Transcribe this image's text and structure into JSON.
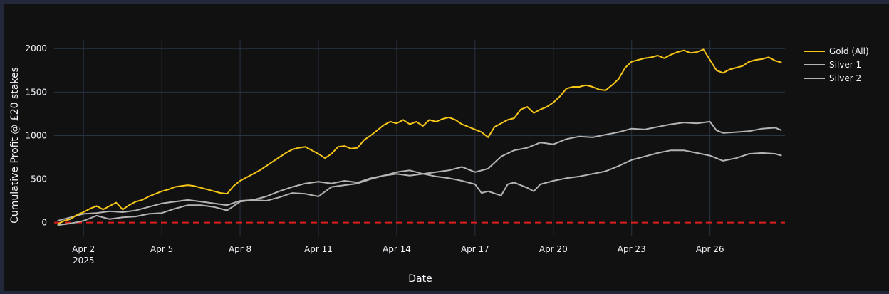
{
  "chart_data": {
    "type": "line",
    "title": "",
    "xlabel": "Date",
    "ylabel": "Cumulative Profit @ £20 stakes",
    "x_ticks": [
      {
        "date": "2025-04-02",
        "label": "Apr 2",
        "sublabel": "2025"
      },
      {
        "date": "2025-04-05",
        "label": "Apr 5",
        "sublabel": ""
      },
      {
        "date": "2025-04-08",
        "label": "Apr 8",
        "sublabel": ""
      },
      {
        "date": "2025-04-11",
        "label": "Apr 11",
        "sublabel": ""
      },
      {
        "date": "2025-04-14",
        "label": "Apr 14",
        "sublabel": ""
      },
      {
        "date": "2025-04-17",
        "label": "Apr 17",
        "sublabel": ""
      },
      {
        "date": "2025-04-20",
        "label": "Apr 20",
        "sublabel": ""
      },
      {
        "date": "2025-04-23",
        "label": "Apr 23",
        "sublabel": ""
      },
      {
        "date": "2025-04-26",
        "label": "Apr 26",
        "sublabel": ""
      }
    ],
    "xlim": [
      "2025-03-31T21:00",
      "2025-04-28T21:00"
    ],
    "ylim": [
      -150,
      2100
    ],
    "y_ticks": [
      0,
      500,
      1000,
      1500,
      2000
    ],
    "grid": true,
    "legend_position": "top-right",
    "reference_line": {
      "y": 0,
      "color": "#e01e1e",
      "style": "dashed"
    },
    "series": [
      {
        "name": "Gold (All)",
        "color": "#f5c518",
        "points": [
          [
            "2025-04-01T00:00",
            -20
          ],
          [
            "2025-04-01T06:00",
            20
          ],
          [
            "2025-04-01T12:00",
            40
          ],
          [
            "2025-04-01T18:00",
            90
          ],
          [
            "2025-04-02T00:00",
            120
          ],
          [
            "2025-04-02T06:00",
            160
          ],
          [
            "2025-04-02T12:00",
            190
          ],
          [
            "2025-04-02T18:00",
            150
          ],
          [
            "2025-04-03T00:00",
            190
          ],
          [
            "2025-04-03T06:00",
            230
          ],
          [
            "2025-04-03T12:00",
            150
          ],
          [
            "2025-04-03T18:00",
            200
          ],
          [
            "2025-04-04T00:00",
            240
          ],
          [
            "2025-04-04T06:00",
            260
          ],
          [
            "2025-04-04T12:00",
            300
          ],
          [
            "2025-04-04T18:00",
            330
          ],
          [
            "2025-04-05T00:00",
            360
          ],
          [
            "2025-04-05T06:00",
            380
          ],
          [
            "2025-04-05T12:00",
            410
          ],
          [
            "2025-04-05T18:00",
            420
          ],
          [
            "2025-04-06T00:00",
            430
          ],
          [
            "2025-04-06T06:00",
            420
          ],
          [
            "2025-04-06T12:00",
            400
          ],
          [
            "2025-04-06T18:00",
            380
          ],
          [
            "2025-04-07T00:00",
            360
          ],
          [
            "2025-04-07T06:00",
            340
          ],
          [
            "2025-04-07T12:00",
            330
          ],
          [
            "2025-04-07T18:00",
            420
          ],
          [
            "2025-04-08T00:00",
            480
          ],
          [
            "2025-04-08T06:00",
            520
          ],
          [
            "2025-04-08T12:00",
            560
          ],
          [
            "2025-04-08T18:00",
            600
          ],
          [
            "2025-04-09T00:00",
            650
          ],
          [
            "2025-04-09T06:00",
            700
          ],
          [
            "2025-04-09T12:00",
            750
          ],
          [
            "2025-04-09T18:00",
            800
          ],
          [
            "2025-04-10T00:00",
            840
          ],
          [
            "2025-04-10T06:00",
            860
          ],
          [
            "2025-04-10T12:00",
            870
          ],
          [
            "2025-04-10T18:00",
            830
          ],
          [
            "2025-04-11T00:00",
            790
          ],
          [
            "2025-04-11T06:00",
            740
          ],
          [
            "2025-04-11T12:00",
            790
          ],
          [
            "2025-04-11T18:00",
            870
          ],
          [
            "2025-04-12T00:00",
            880
          ],
          [
            "2025-04-12T06:00",
            850
          ],
          [
            "2025-04-12T12:00",
            860
          ],
          [
            "2025-04-12T18:00",
            950
          ],
          [
            "2025-04-13T00:00",
            1000
          ],
          [
            "2025-04-13T06:00",
            1060
          ],
          [
            "2025-04-13T12:00",
            1120
          ],
          [
            "2025-04-13T18:00",
            1160
          ],
          [
            "2025-04-14T00:00",
            1140
          ],
          [
            "2025-04-14T06:00",
            1180
          ],
          [
            "2025-04-14T12:00",
            1130
          ],
          [
            "2025-04-14T18:00",
            1160
          ],
          [
            "2025-04-15T00:00",
            1110
          ],
          [
            "2025-04-15T06:00",
            1180
          ],
          [
            "2025-04-15T12:00",
            1160
          ],
          [
            "2025-04-15T18:00",
            1190
          ],
          [
            "2025-04-16T00:00",
            1210
          ],
          [
            "2025-04-16T06:00",
            1180
          ],
          [
            "2025-04-16T12:00",
            1130
          ],
          [
            "2025-04-16T18:00",
            1100
          ],
          [
            "2025-04-17T00:00",
            1070
          ],
          [
            "2025-04-17T06:00",
            1040
          ],
          [
            "2025-04-17T12:00",
            980
          ],
          [
            "2025-04-17T18:00",
            1100
          ],
          [
            "2025-04-18T00:00",
            1140
          ],
          [
            "2025-04-18T06:00",
            1180
          ],
          [
            "2025-04-18T12:00",
            1200
          ],
          [
            "2025-04-18T18:00",
            1300
          ],
          [
            "2025-04-19T00:00",
            1330
          ],
          [
            "2025-04-19T06:00",
            1260
          ],
          [
            "2025-04-19T12:00",
            1300
          ],
          [
            "2025-04-19T18:00",
            1330
          ],
          [
            "2025-04-20T00:00",
            1380
          ],
          [
            "2025-04-20T06:00",
            1450
          ],
          [
            "2025-04-20T12:00",
            1540
          ],
          [
            "2025-04-20T18:00",
            1560
          ],
          [
            "2025-04-21T00:00",
            1560
          ],
          [
            "2025-04-21T06:00",
            1580
          ],
          [
            "2025-04-21T12:00",
            1560
          ],
          [
            "2025-04-21T18:00",
            1530
          ],
          [
            "2025-04-22T00:00",
            1520
          ],
          [
            "2025-04-22T06:00",
            1580
          ],
          [
            "2025-04-22T12:00",
            1650
          ],
          [
            "2025-04-22T18:00",
            1780
          ],
          [
            "2025-04-23T00:00",
            1850
          ],
          [
            "2025-04-23T06:00",
            1870
          ],
          [
            "2025-04-23T12:00",
            1890
          ],
          [
            "2025-04-23T18:00",
            1900
          ],
          [
            "2025-04-24T00:00",
            1920
          ],
          [
            "2025-04-24T06:00",
            1890
          ],
          [
            "2025-04-24T12:00",
            1930
          ],
          [
            "2025-04-24T18:00",
            1960
          ],
          [
            "2025-04-25T00:00",
            1980
          ],
          [
            "2025-04-25T06:00",
            1950
          ],
          [
            "2025-04-25T12:00",
            1960
          ],
          [
            "2025-04-25T18:00",
            1990
          ],
          [
            "2025-04-26T00:00",
            1870
          ],
          [
            "2025-04-26T06:00",
            1750
          ],
          [
            "2025-04-26T12:00",
            1720
          ],
          [
            "2025-04-26T18:00",
            1760
          ],
          [
            "2025-04-27T00:00",
            1780
          ],
          [
            "2025-04-27T06:00",
            1800
          ],
          [
            "2025-04-27T12:00",
            1850
          ],
          [
            "2025-04-27T18:00",
            1870
          ],
          [
            "2025-04-28T00:00",
            1880
          ],
          [
            "2025-04-28T06:00",
            1900
          ],
          [
            "2025-04-28T12:00",
            1860
          ],
          [
            "2025-04-28T18:00",
            1840
          ]
        ]
      },
      {
        "name": "Silver 1",
        "color": "#b4b4b4",
        "points": [
          [
            "2025-04-01T00:00",
            20
          ],
          [
            "2025-04-01T12:00",
            60
          ],
          [
            "2025-04-02T00:00",
            100
          ],
          [
            "2025-04-02T12:00",
            110
          ],
          [
            "2025-04-03T00:00",
            130
          ],
          [
            "2025-04-03T12:00",
            120
          ],
          [
            "2025-04-04T00:00",
            140
          ],
          [
            "2025-04-04T12:00",
            180
          ],
          [
            "2025-04-05T00:00",
            220
          ],
          [
            "2025-04-05T12:00",
            240
          ],
          [
            "2025-04-06T00:00",
            260
          ],
          [
            "2025-04-06T12:00",
            240
          ],
          [
            "2025-04-07T00:00",
            220
          ],
          [
            "2025-04-07T12:00",
            200
          ],
          [
            "2025-04-08T00:00",
            250
          ],
          [
            "2025-04-08T12:00",
            260
          ],
          [
            "2025-04-09T00:00",
            300
          ],
          [
            "2025-04-09T12:00",
            360
          ],
          [
            "2025-04-10T00:00",
            410
          ],
          [
            "2025-04-10T12:00",
            450
          ],
          [
            "2025-04-11T00:00",
            470
          ],
          [
            "2025-04-11T12:00",
            450
          ],
          [
            "2025-04-12T00:00",
            480
          ],
          [
            "2025-04-12T12:00",
            460
          ],
          [
            "2025-04-13T00:00",
            510
          ],
          [
            "2025-04-13T12:00",
            540
          ],
          [
            "2025-04-14T00:00",
            580
          ],
          [
            "2025-04-14T12:00",
            600
          ],
          [
            "2025-04-15T00:00",
            560
          ],
          [
            "2025-04-15T12:00",
            580
          ],
          [
            "2025-04-16T00:00",
            600
          ],
          [
            "2025-04-16T12:00",
            640
          ],
          [
            "2025-04-17T00:00",
            580
          ],
          [
            "2025-04-17T12:00",
            620
          ],
          [
            "2025-04-18T00:00",
            760
          ],
          [
            "2025-04-18T12:00",
            830
          ],
          [
            "2025-04-19T00:00",
            860
          ],
          [
            "2025-04-19T12:00",
            920
          ],
          [
            "2025-04-20T00:00",
            900
          ],
          [
            "2025-04-20T12:00",
            960
          ],
          [
            "2025-04-21T00:00",
            990
          ],
          [
            "2025-04-21T12:00",
            980
          ],
          [
            "2025-04-22T00:00",
            1010
          ],
          [
            "2025-04-22T12:00",
            1040
          ],
          [
            "2025-04-23T00:00",
            1080
          ],
          [
            "2025-04-23T12:00",
            1070
          ],
          [
            "2025-04-24T00:00",
            1100
          ],
          [
            "2025-04-24T12:00",
            1130
          ],
          [
            "2025-04-25T00:00",
            1150
          ],
          [
            "2025-04-25T12:00",
            1140
          ],
          [
            "2025-04-26T00:00",
            1160
          ],
          [
            "2025-04-26T06:00",
            1060
          ],
          [
            "2025-04-26T12:00",
            1030
          ],
          [
            "2025-04-27T00:00",
            1040
          ],
          [
            "2025-04-27T12:00",
            1050
          ],
          [
            "2025-04-28T00:00",
            1080
          ],
          [
            "2025-04-28T12:00",
            1090
          ],
          [
            "2025-04-28T18:00",
            1060
          ]
        ]
      },
      {
        "name": "Silver 2",
        "color": "#b4b4b4",
        "points": [
          [
            "2025-04-01T00:00",
            -30
          ],
          [
            "2025-04-01T12:00",
            -10
          ],
          [
            "2025-04-02T00:00",
            20
          ],
          [
            "2025-04-02T12:00",
            80
          ],
          [
            "2025-04-03T00:00",
            40
          ],
          [
            "2025-04-03T12:00",
            60
          ],
          [
            "2025-04-04T00:00",
            70
          ],
          [
            "2025-04-04T12:00",
            100
          ],
          [
            "2025-04-05T00:00",
            110
          ],
          [
            "2025-04-05T12:00",
            160
          ],
          [
            "2025-04-06T00:00",
            200
          ],
          [
            "2025-04-06T12:00",
            200
          ],
          [
            "2025-04-07T00:00",
            180
          ],
          [
            "2025-04-07T12:00",
            140
          ],
          [
            "2025-04-08T00:00",
            240
          ],
          [
            "2025-04-08T12:00",
            260
          ],
          [
            "2025-04-09T00:00",
            250
          ],
          [
            "2025-04-09T12:00",
            290
          ],
          [
            "2025-04-10T00:00",
            340
          ],
          [
            "2025-04-10T12:00",
            330
          ],
          [
            "2025-04-11T00:00",
            300
          ],
          [
            "2025-04-11T12:00",
            410
          ],
          [
            "2025-04-12T00:00",
            430
          ],
          [
            "2025-04-12T12:00",
            450
          ],
          [
            "2025-04-13T00:00",
            500
          ],
          [
            "2025-04-13T12:00",
            540
          ],
          [
            "2025-04-14T00:00",
            560
          ],
          [
            "2025-04-14T12:00",
            540
          ],
          [
            "2025-04-15T00:00",
            560
          ],
          [
            "2025-04-15T12:00",
            530
          ],
          [
            "2025-04-16T00:00",
            510
          ],
          [
            "2025-04-16T12:00",
            480
          ],
          [
            "2025-04-17T00:00",
            440
          ],
          [
            "2025-04-17T06:00",
            340
          ],
          [
            "2025-04-17T12:00",
            360
          ],
          [
            "2025-04-18T00:00",
            310
          ],
          [
            "2025-04-18T06:00",
            440
          ],
          [
            "2025-04-18T12:00",
            460
          ],
          [
            "2025-04-19T00:00",
            400
          ],
          [
            "2025-04-19T06:00",
            360
          ],
          [
            "2025-04-19T12:00",
            440
          ],
          [
            "2025-04-20T00:00",
            480
          ],
          [
            "2025-04-20T12:00",
            510
          ],
          [
            "2025-04-21T00:00",
            530
          ],
          [
            "2025-04-21T12:00",
            560
          ],
          [
            "2025-04-22T00:00",
            590
          ],
          [
            "2025-04-22T12:00",
            650
          ],
          [
            "2025-04-23T00:00",
            720
          ],
          [
            "2025-04-23T12:00",
            760
          ],
          [
            "2025-04-24T00:00",
            800
          ],
          [
            "2025-04-24T12:00",
            830
          ],
          [
            "2025-04-25T00:00",
            830
          ],
          [
            "2025-04-25T12:00",
            800
          ],
          [
            "2025-04-26T00:00",
            770
          ],
          [
            "2025-04-26T12:00",
            710
          ],
          [
            "2025-04-27T00:00",
            740
          ],
          [
            "2025-04-27T12:00",
            790
          ],
          [
            "2025-04-28T00:00",
            800
          ],
          [
            "2025-04-28T12:00",
            790
          ],
          [
            "2025-04-28T18:00",
            770
          ]
        ]
      }
    ]
  }
}
